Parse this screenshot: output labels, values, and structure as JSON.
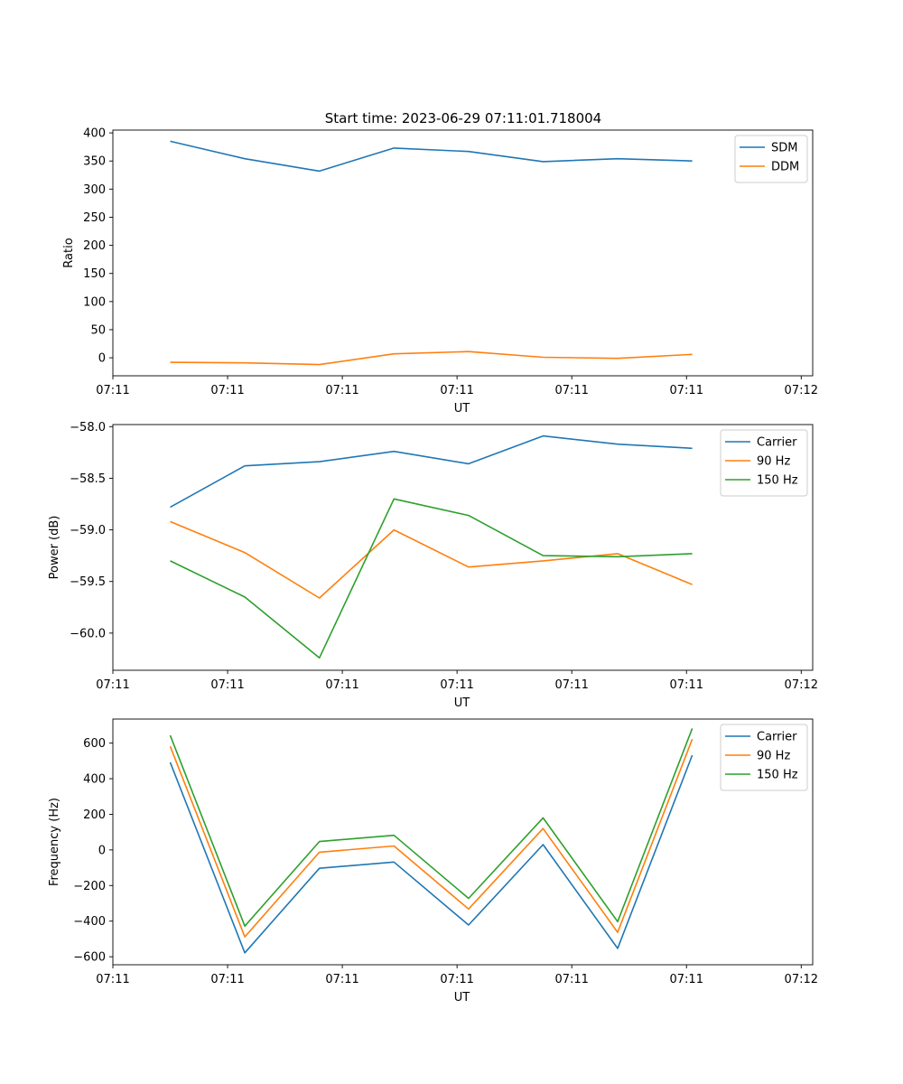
{
  "figure": {
    "title": "Start time: 2023-06-29 07:11:01.718004"
  },
  "colors": {
    "blue": "#1f77b4",
    "orange": "#ff7f0e",
    "green": "#2ca02c"
  },
  "chart_data": [
    {
      "type": "line",
      "title": "Start time: 2023-06-29 07:11:01.718004",
      "xlabel": "UT",
      "ylabel": "Ratio",
      "xlim": [
        0,
        6.1
      ],
      "ylim": [
        -32,
        405
      ],
      "xticks": [
        0.0,
        1.0,
        2.0,
        3.0,
        4.0,
        5.0,
        6.0
      ],
      "xtick_labels": [
        "07:11",
        "07:11",
        "07:11",
        "07:11",
        "07:11",
        "07:11",
        "07:12"
      ],
      "yticks": [
        0,
        50,
        100,
        150,
        200,
        250,
        300,
        350,
        400
      ],
      "ytick_labels": [
        "0",
        "50",
        "100",
        "150",
        "200",
        "250",
        "300",
        "350",
        "400"
      ],
      "legend": "top-right",
      "x": [
        0.5,
        1.15,
        1.8,
        2.45,
        3.1,
        3.75,
        4.4,
        5.05
      ],
      "series": [
        {
          "name": "SDM",
          "color": "#1f77b4",
          "values": [
            385,
            354,
            332,
            373,
            367,
            349,
            354,
            350
          ]
        },
        {
          "name": "DDM",
          "color": "#ff7f0e",
          "values": [
            -8,
            -9,
            -12,
            7,
            11,
            1,
            -1,
            6
          ]
        }
      ]
    },
    {
      "type": "line",
      "title": "",
      "xlabel": "UT",
      "ylabel": "Power (dB)",
      "xlim": [
        0,
        6.1
      ],
      "ylim": [
        -60.36,
        -57.98
      ],
      "xticks": [
        0.0,
        1.0,
        2.0,
        3.0,
        4.0,
        5.0,
        6.0
      ],
      "xtick_labels": [
        "07:11",
        "07:11",
        "07:11",
        "07:11",
        "07:11",
        "07:11",
        "07:12"
      ],
      "yticks": [
        -60.0,
        -59.5,
        -59.0,
        -58.5,
        -58.0
      ],
      "ytick_labels": [
        "−60.0",
        "−59.5",
        "−59.0",
        "−58.5",
        "−58.0"
      ],
      "legend": "top-right",
      "x": [
        0.5,
        1.15,
        1.8,
        2.45,
        3.1,
        3.75,
        4.4,
        5.05
      ],
      "series": [
        {
          "name": "Carrier",
          "color": "#1f77b4",
          "values": [
            -58.78,
            -58.38,
            -58.34,
            -58.24,
            -58.36,
            -58.09,
            -58.17,
            -58.21
          ]
        },
        {
          "name": "90 Hz",
          "color": "#ff7f0e",
          "values": [
            -58.92,
            -59.22,
            -59.66,
            -59.0,
            -59.36,
            -59.3,
            -59.23,
            -59.53
          ]
        },
        {
          "name": "150 Hz",
          "color": "#2ca02c",
          "values": [
            -59.3,
            -59.65,
            -60.24,
            -58.7,
            -58.86,
            -59.25,
            -59.26,
            -59.23
          ]
        }
      ]
    },
    {
      "type": "line",
      "title": "",
      "xlabel": "UT",
      "ylabel": "Frequency (Hz)",
      "xlim": [
        0,
        6.1
      ],
      "ylim": [
        -645,
        735
      ],
      "xticks": [
        0.0,
        1.0,
        2.0,
        3.0,
        4.0,
        5.0,
        6.0
      ],
      "xtick_labels": [
        "07:11",
        "07:11",
        "07:11",
        "07:11",
        "07:11",
        "07:11",
        "07:12"
      ],
      "yticks": [
        -600,
        -400,
        -200,
        0,
        200,
        400,
        600
      ],
      "ytick_labels": [
        "−600",
        "−400",
        "−200",
        "0",
        "200",
        "400",
        "600"
      ],
      "legend": "top-right",
      "x": [
        0.5,
        1.15,
        1.8,
        2.45,
        3.1,
        3.75,
        4.4,
        5.05
      ],
      "series": [
        {
          "name": "Carrier",
          "color": "#1f77b4",
          "values": [
            492,
            -578,
            -103,
            -68,
            -422,
            30,
            -553,
            532
          ]
        },
        {
          "name": "90 Hz",
          "color": "#ff7f0e",
          "values": [
            582,
            -488,
            -13,
            22,
            -332,
            120,
            -463,
            622
          ]
        },
        {
          "name": "150 Hz",
          "color": "#2ca02c",
          "values": [
            643,
            -428,
            47,
            82,
            -272,
            180,
            -403,
            682
          ]
        }
      ]
    }
  ]
}
